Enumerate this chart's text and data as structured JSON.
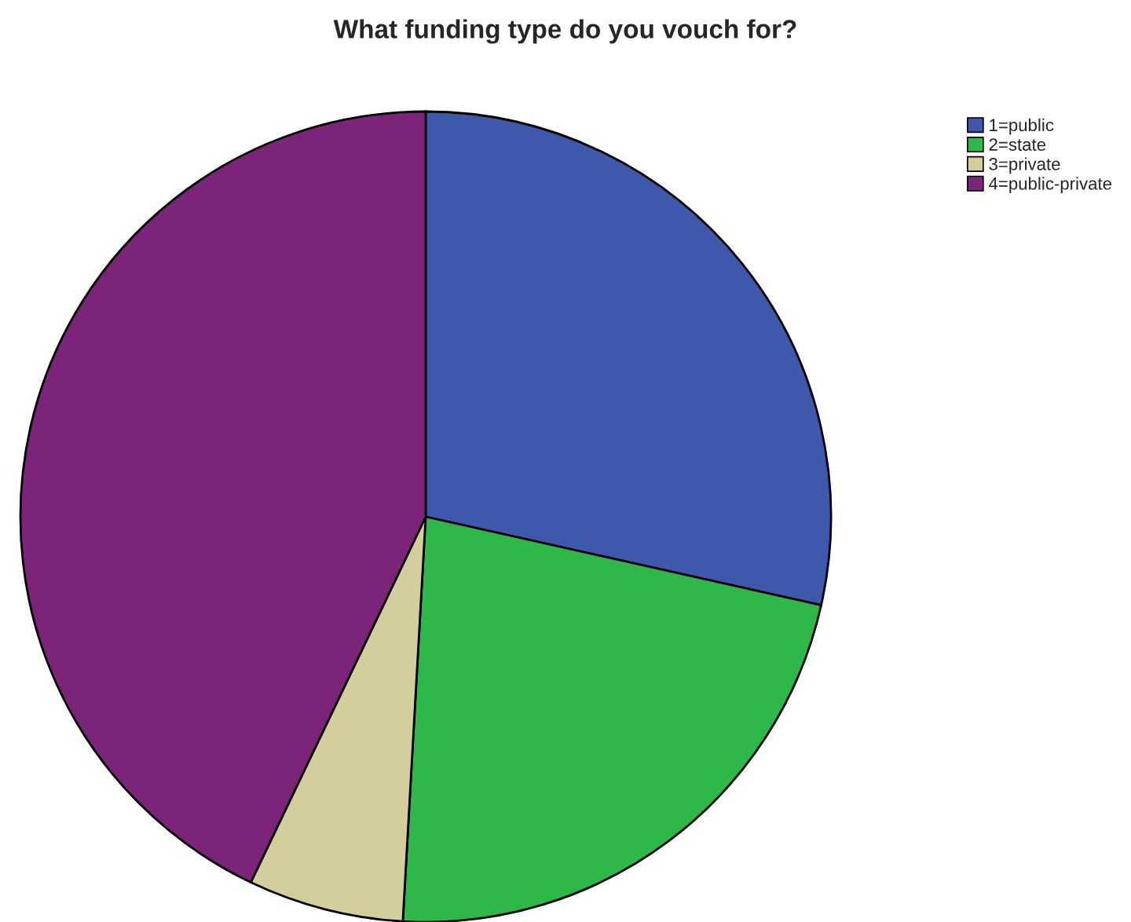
{
  "chart_data": {
    "type": "pie",
    "title": "What funding type do you vouch for?",
    "categories": [
      "1=public",
      "2=state",
      "3=private",
      "4=public-private"
    ],
    "values": [
      28.5,
      22.4,
      6.2,
      42.9
    ],
    "colors": [
      "#3e58ac",
      "#2eb84a",
      "#d3ce9b",
      "#7b2479"
    ],
    "legend": "top right"
  }
}
